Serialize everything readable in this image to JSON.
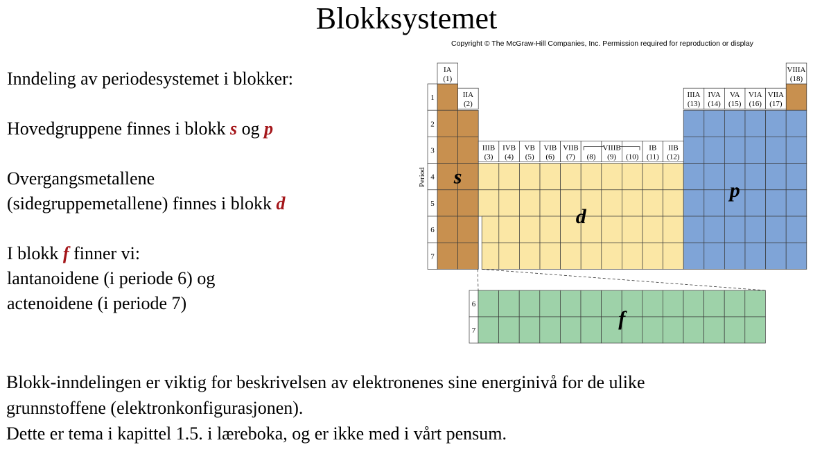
{
  "title": "Blokksystemet",
  "copyright": "Copyright © The McGraw-Hill Companies, Inc. Permission required for reproduction or display",
  "left": {
    "intro": "Inndeling av periodesystemet i blokker:",
    "main_groups": {
      "text": "Hovedgruppene finnes i blokk ",
      "block1": "s",
      "join": " og ",
      "block2": "p"
    },
    "transition_line1": "Overgangsmetallene",
    "transition_line2": {
      "text": "(sidegruppemetallene) finnes i blokk ",
      "block": "d"
    },
    "f_intro": {
      "prefix": "I blokk ",
      "block": "f",
      "suffix": " finner vi:"
    },
    "lanthanoids": "lantanoidene (i periode 6) og",
    "actinoids": "actenoidene (i periode 7)"
  },
  "bottom": {
    "line1": "Blokk-inndelingen er viktig for beskrivelsen av elektronenes sine energinivå for de ulike",
    "line2": "grunnstoffene (elektronkonfigurasjonen).",
    "line3": "Dette er tema i kapittel 1.5. i læreboka, og er ikke med i vårt pensum."
  },
  "table": {
    "axis_label": "Period",
    "periods": [
      "1",
      "2",
      "3",
      "4",
      "5",
      "6",
      "7"
    ],
    "f_periods": [
      "6",
      "7"
    ],
    "group_headers": {
      "1": [
        "IA",
        "(1)"
      ],
      "2": [
        "IIA",
        "(2)"
      ],
      "3": [
        "IIIB",
        "(3)"
      ],
      "4": [
        "IVB",
        "(4)"
      ],
      "5": [
        "VB",
        "(5)"
      ],
      "6": [
        "VIB",
        "(6)"
      ],
      "7": [
        "VIIB",
        "(7)"
      ],
      "8": [
        "",
        "(8)"
      ],
      "9": [
        "VIIIB",
        "(9)"
      ],
      "10": [
        "",
        "(10)"
      ],
      "11": [
        "IB",
        "(11)"
      ],
      "12": [
        "IIB",
        "(12)"
      ],
      "13": [
        "IIIA",
        "(13)"
      ],
      "14": [
        "IVA",
        "(14)"
      ],
      "15": [
        "VA",
        "(15)"
      ],
      "16": [
        "VIA",
        "(16)"
      ],
      "17": [
        "VIIA",
        "(17)"
      ],
      "18": [
        "VIIIA",
        "(18)"
      ]
    },
    "block_labels": {
      "s": "s",
      "p": "p",
      "d": "d",
      "f": "f"
    },
    "colors": {
      "s": "#c8904f",
      "p": "#7fa4d7",
      "d": "#fbe7a5",
      "f": "#9ed2a9",
      "grid": "#3a3a3a"
    }
  }
}
